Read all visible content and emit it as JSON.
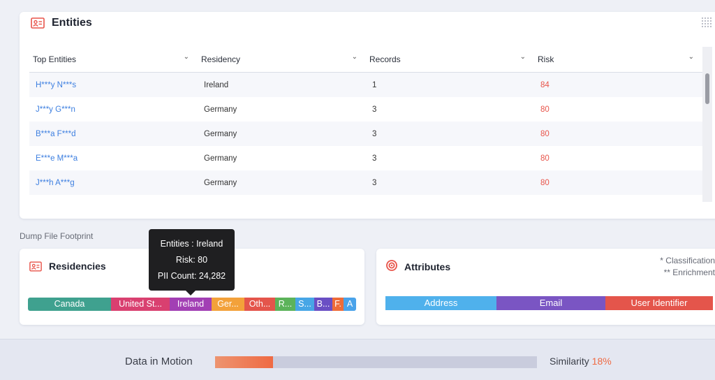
{
  "entities": {
    "title": "Entities",
    "columns": [
      "Top Entities",
      "Residency",
      "Records",
      "Risk"
    ],
    "rows": [
      {
        "entity": "H***y N***s",
        "residency": "Ireland",
        "records": "1",
        "risk": "84"
      },
      {
        "entity": "J***y G***n",
        "residency": "Germany",
        "records": "3",
        "risk": "80"
      },
      {
        "entity": "B***a F***d",
        "residency": "Germany",
        "records": "3",
        "risk": "80"
      },
      {
        "entity": "E***e M***a",
        "residency": "Germany",
        "records": "3",
        "risk": "80"
      },
      {
        "entity": "J***h A***g",
        "residency": "Germany",
        "records": "3",
        "risk": "80"
      }
    ]
  },
  "section_label": "Dump File Footprint",
  "residencies": {
    "title": "Residencies",
    "segments": [
      {
        "label": "Canada",
        "color": "#3fa18f"
      },
      {
        "label": "United St...",
        "color": "#d94070"
      },
      {
        "label": "Ireland",
        "color": "#a23fb4"
      },
      {
        "label": "Ger...",
        "color": "#f3a13a"
      },
      {
        "label": "Oth...",
        "color": "#e4554b"
      },
      {
        "label": "R...",
        "color": "#5cb35a"
      },
      {
        "label": "S...",
        "color": "#47a6e6"
      },
      {
        "label": "B...",
        "color": "#6a4fc4"
      },
      {
        "label": "F.",
        "color": "#ee6c39"
      },
      {
        "label": "A",
        "color": "#4aa3ea"
      }
    ]
  },
  "tooltip": {
    "line1": "Entities : Ireland",
    "line2": "Risk: 80",
    "line3": "PII Count: 24,282"
  },
  "attributes": {
    "title": "Attributes",
    "note1": "* Classification",
    "note2": "** Enrichment",
    "segments": [
      {
        "label": "Address",
        "color": "#4fb1ec"
      },
      {
        "label": "Email",
        "color": "#7a55c3"
      },
      {
        "label": "User Identifier",
        "color": "#e4554b"
      }
    ]
  },
  "motion": {
    "label": "Data in Motion",
    "similarity_label": "Similarity",
    "similarity_value": "18%",
    "progress_fraction": 0.18
  }
}
